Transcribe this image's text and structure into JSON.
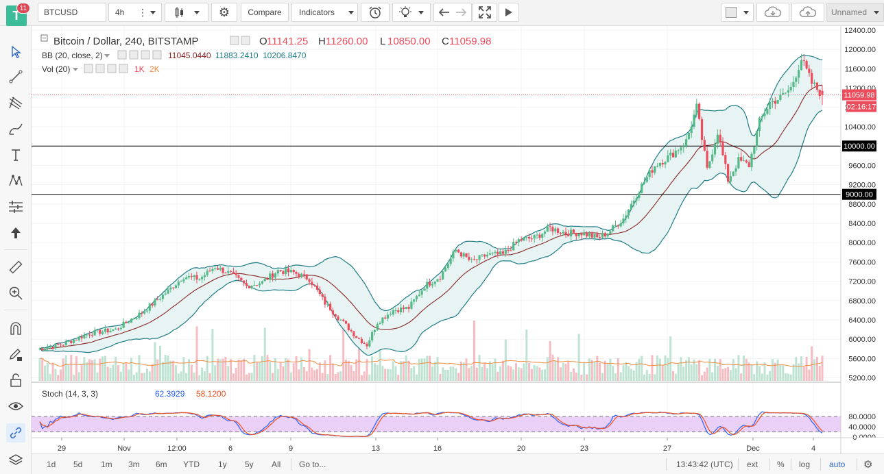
{
  "toolbar": {
    "logo_letter": "T",
    "notification_count": "11",
    "symbol": "BTCUSD",
    "interval": "4h",
    "compare_label": "Compare",
    "indicators_label": "Indicators",
    "layout_name": "Unnamed"
  },
  "legend": {
    "pair": "Bitcoin / Dollar, 240, BITSTAMP",
    "ohlc": [
      {
        "k": "O",
        "v": "11141.25"
      },
      {
        "k": "H",
        "v": "11260.00"
      },
      {
        "k": "L",
        "v": "10850.00"
      },
      {
        "k": "C",
        "v": "11059.98"
      }
    ],
    "bb_label": "BB (20, close, 2)",
    "bb_values": [
      "11045.0440",
      "11883.2410",
      "10206.8470"
    ],
    "vol_label": "Vol (20)",
    "vol_values": [
      "1K",
      "2K"
    ],
    "stoch_label": "Stoch (14, 3, 3)",
    "stoch_values": [
      "62.3929",
      "58.1200"
    ]
  },
  "price_axis": {
    "ticks": [
      "12400.00",
      "12000.00",
      "11600.00",
      "11200.00",
      "10800.00",
      "10400.00",
      "10000.00",
      "9600.00",
      "9200.00",
      "8800.00",
      "8400.00",
      "8000.00",
      "7600.00",
      "7200.00",
      "6800.00",
      "6400.00",
      "6000.00",
      "5600.00",
      "5200.00"
    ],
    "last_price": "11059.98",
    "countdown": "02:16:17"
  },
  "stoch_axis": {
    "ticks": [
      "80.0000",
      "40.0000",
      "0.0000"
    ]
  },
  "time_axis": {
    "labels": [
      "29",
      "Nov",
      "12:00",
      "6",
      "9",
      "13",
      "16",
      "20",
      "23",
      "27",
      "Dec",
      "4"
    ]
  },
  "bottom": {
    "ranges": [
      "1d",
      "5d",
      "1m",
      "3m",
      "6m",
      "YTD",
      "1y",
      "5y",
      "All"
    ],
    "goto_label": "Go to...",
    "clock": "13:43:42 (UTC)",
    "toggles": [
      "ext",
      "%",
      "log",
      "auto"
    ]
  },
  "chart_data": {
    "type": "candlestick",
    "symbol": "BTCUSD",
    "exchange": "BITSTAMP",
    "interval_minutes": 240,
    "y_range": [
      5200,
      12500
    ],
    "ohlc_last": {
      "open": 11141.25,
      "high": 11260.0,
      "low": 10850.0,
      "close": 11059.98
    },
    "close_path": [
      [
        0,
        5790
      ],
      [
        10,
        5900
      ],
      [
        20,
        6120
      ],
      [
        30,
        6200
      ],
      [
        40,
        6550
      ],
      [
        50,
        7000
      ],
      [
        56,
        7300
      ],
      [
        62,
        7250
      ],
      [
        68,
        7500
      ],
      [
        74,
        7350
      ],
      [
        80,
        7100
      ],
      [
        86,
        7180
      ],
      [
        92,
        7420
      ],
      [
        98,
        7380
      ],
      [
        104,
        7250
      ],
      [
        110,
        6750
      ],
      [
        116,
        6400
      ],
      [
        122,
        6050
      ],
      [
        126,
        5880
      ],
      [
        130,
        6350
      ],
      [
        136,
        6600
      ],
      [
        142,
        6650
      ],
      [
        148,
        7100
      ],
      [
        154,
        7300
      ],
      [
        160,
        7850
      ],
      [
        166,
        7600
      ],
      [
        172,
        7750
      ],
      [
        178,
        7750
      ],
      [
        184,
        8050
      ],
      [
        190,
        8100
      ],
      [
        196,
        8300
      ],
      [
        202,
        8200
      ],
      [
        208,
        8200
      ],
      [
        214,
        8100
      ],
      [
        218,
        8200
      ],
      [
        224,
        8500
      ],
      [
        230,
        9100
      ],
      [
        236,
        9600
      ],
      [
        242,
        9800
      ],
      [
        248,
        10100
      ],
      [
        252,
        10800
      ],
      [
        256,
        9500
      ],
      [
        260,
        10300
      ],
      [
        264,
        9300
      ],
      [
        268,
        9700
      ],
      [
        272,
        9600
      ],
      [
        276,
        10500
      ],
      [
        280,
        10900
      ],
      [
        284,
        11000
      ],
      [
        288,
        11200
      ],
      [
        292,
        11800
      ],
      [
        296,
        11300
      ],
      [
        300,
        11060
      ]
    ],
    "horizontal_levels": [
      10000,
      9000
    ],
    "stoch_levels": [
      80,
      20
    ],
    "time_labels": [
      "29",
      "Nov",
      "12:00",
      "6",
      "9",
      "13",
      "16",
      "20",
      "23",
      "27",
      "Dec",
      "4"
    ],
    "colors": {
      "up": "#53b987",
      "down": "#eb4d5c",
      "bb_basis": "#872323",
      "bb_band": "#1e7b84",
      "bb_fill": "#e8f4f4",
      "vol_up": "#bfe3d3",
      "vol_down": "#f5bcc2",
      "vol_ma": "#f08b3c",
      "stoch_k": "#2962ff",
      "stoch_d": "#f0501e",
      "stoch_fill": "#e6c8f5"
    }
  }
}
